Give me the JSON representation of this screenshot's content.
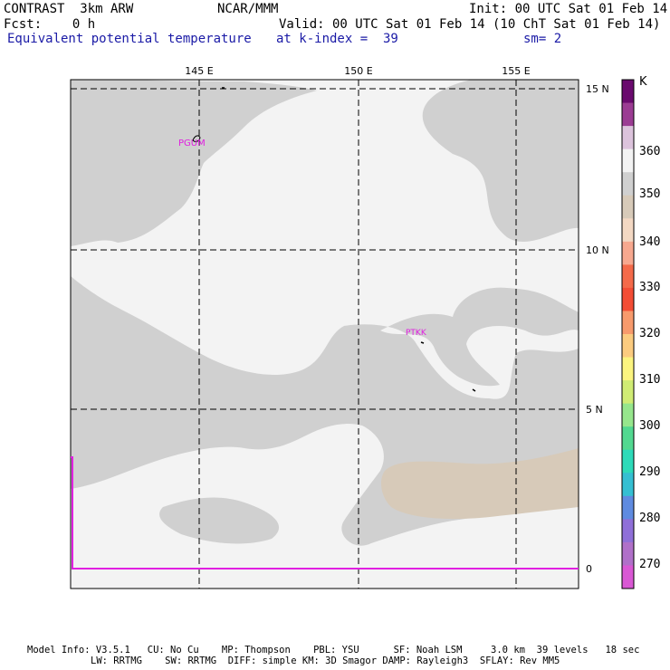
{
  "header": {
    "model": "CONTRAST  3km ARW",
    "center": "NCAR/MMM",
    "init": "Init: 00 UTC Sat 01 Feb 14",
    "fcst": "Fcst:    0 h",
    "valid": "Valid: 00 UTC Sat 01 Feb 14 (10 ChT Sat 01 Feb 14)",
    "field": "Equivalent potential temperature",
    "level": "at k-index =  39",
    "smooth": "sm= 2"
  },
  "map": {
    "lon_labels": [
      "145 E",
      "150 E",
      "155 E"
    ],
    "lat_labels": [
      "15 N",
      "10 N",
      "5 N",
      "0"
    ],
    "stations": [
      "PGUM",
      "PTKK"
    ]
  },
  "colorbar": {
    "unit": "K",
    "labels": [
      "360",
      "350",
      "340",
      "330",
      "320",
      "310",
      "300",
      "290",
      "280",
      "270"
    ],
    "colors": [
      "#6a0a6e",
      "#9b3c93",
      "#dcc3dc",
      "#f3f3f3",
      "#d0d0d0",
      "#d7cab9",
      "#f3d8c3",
      "#f7a88f",
      "#f46a4a",
      "#f34d35",
      "#f79a6c",
      "#fbcb7f",
      "#fbf47f",
      "#d0ec74",
      "#96e68c",
      "#52d890",
      "#2ddab9",
      "#35bfd2",
      "#5f8be0",
      "#8f6fd8",
      "#b070c9",
      "#d958d4"
    ]
  },
  "footer": {
    "line1": "Model Info: V3.5.1   CU: No Cu    MP: Thompson    PBL: YSU      SF: Noah LSM     3.0 km  39 levels   18 sec",
    "line2": "LW: RRTMG    SW: RRTMG  DIFF: simple KM: 3D Smagor DAMP: Rayleigh3  SFLAY: Rev MM5"
  }
}
